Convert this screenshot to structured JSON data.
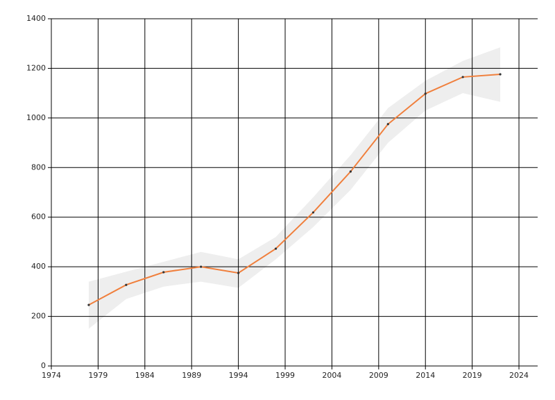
{
  "chart_data": {
    "type": "line",
    "x": [
      1978,
      1982,
      1986,
      1990,
      1994,
      1998,
      2002,
      2006,
      2010,
      2014,
      2018,
      2022
    ],
    "series": [
      {
        "color": "#f07f3c",
        "values": [
          246,
          327,
          378,
          400,
          375,
          473,
          619,
          784,
          975,
          1098,
          1165,
          1176
        ]
      }
    ],
    "band_upper": [
      340,
      380,
      420,
      460,
      430,
      520,
      680,
      850,
      1040,
      1150,
      1230,
      1285
    ],
    "band_lower": [
      150,
      270,
      320,
      340,
      315,
      430,
      560,
      710,
      900,
      1030,
      1100,
      1065
    ],
    "band_color": "#eeeeee",
    "xlim": [
      1974,
      2026
    ],
    "xticks": [
      1974,
      1979,
      1984,
      1989,
      1994,
      1999,
      2004,
      2009,
      2014,
      2019,
      2024
    ],
    "ylim": [
      0,
      1400
    ],
    "yticks": [
      0,
      200,
      400,
      600,
      800,
      1000,
      1200,
      1400
    ],
    "grid": true
  }
}
